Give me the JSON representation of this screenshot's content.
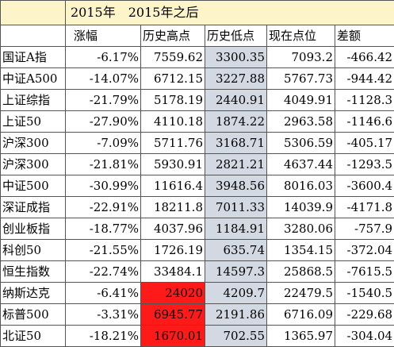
{
  "title": "2015年　2015年之后",
  "headers": [
    "",
    "涨幅",
    "历史高点",
    "历史低点",
    "现在点位",
    "差额"
  ],
  "rows": [
    {
      "name": "国证A指",
      "change": "-6.17%",
      "high": "7559.62",
      "low": "3300.35",
      "current": "7093.2",
      "diff": "-466.42"
    },
    {
      "name": "中证A500",
      "change": "-14.07%",
      "high": "6712.15",
      "low": "3227.88",
      "current": "5767.73",
      "diff": "-944.42"
    },
    {
      "name": "上证综指",
      "change": "-21.79%",
      "high": "5178.19",
      "low": "2440.91",
      "current": "4049.91",
      "diff": "-1128.3"
    },
    {
      "name": "上证50",
      "change": "-27.90%",
      "high": "4110.18",
      "low": "1874.22",
      "current": "2963.58",
      "diff": "-1146.6"
    },
    {
      "name": "沪深300",
      "change": "-7.09%",
      "high": "5711.76",
      "low": "3168.71",
      "current": "5306.59",
      "diff": "-405.17"
    },
    {
      "name": "沪深300",
      "change": "-21.81%",
      "high": "5930.91",
      "low": "2821.21",
      "current": "4637.44",
      "diff": "-1293.5"
    },
    {
      "name": "中证500",
      "change": "-30.99%",
      "high": "11616.4",
      "low": "3948.56",
      "current": "8016.03",
      "diff": "-3600.4"
    },
    {
      "name": "深证成指",
      "change": "-22.91%",
      "high": "18211.8",
      "low": "7011.33",
      "current": "14039.9",
      "diff": "-4171.8"
    },
    {
      "name": "创业板指",
      "change": "-18.77%",
      "high": "4037.96",
      "low": "1184.91",
      "current": "3280.06",
      "diff": "-757.9"
    },
    {
      "name": "科创50",
      "change": "-21.55%",
      "high": "1726.19",
      "low": "635.74",
      "current": "1354.15",
      "diff": "-372.04"
    },
    {
      "name": "恒生指数",
      "change": "-22.74%",
      "high": "33484.1",
      "low": "14597.3",
      "current": "25868.5",
      "diff": "-7615.5"
    },
    {
      "name": "纳斯达克",
      "change": "-6.41%",
      "high": "24020",
      "low": "4209.7",
      "current": "22479.5",
      "diff": "-1540.5"
    },
    {
      "name": "标普500",
      "change": "-3.31%",
      "high": "6945.77",
      "low": "2191.86",
      "current": "6716.09",
      "diff": "-229.68"
    },
    {
      "name": "北证50",
      "change": "-18.21%",
      "high": "1670.01",
      "low": "702.55",
      "current": "1365.97",
      "diff": "-304.04"
    }
  ],
  "colors": {
    "title_bg": "#fdf4c9",
    "low_shade": "#d3d9e2",
    "highlight_red": "#ff1a1a"
  }
}
